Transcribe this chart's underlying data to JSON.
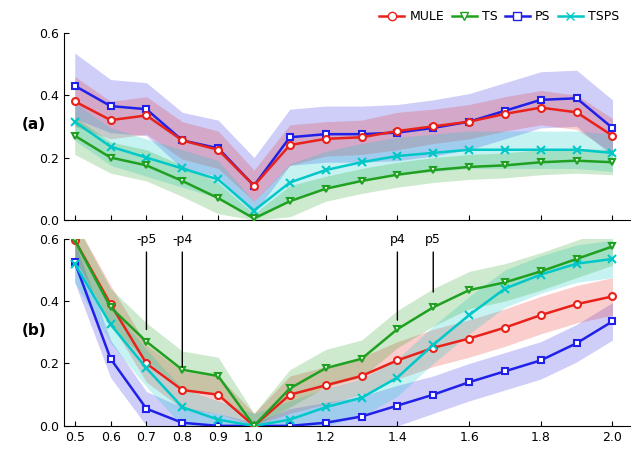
{
  "x": [
    0.5,
    0.6,
    0.7,
    0.8,
    0.9,
    1.0,
    1.1,
    1.2,
    1.3,
    1.4,
    1.5,
    1.6,
    1.7,
    1.8,
    1.9,
    2.0
  ],
  "a_MULE": [
    0.38,
    0.32,
    0.335,
    0.255,
    0.225,
    0.11,
    0.24,
    0.26,
    0.265,
    0.285,
    0.3,
    0.315,
    0.34,
    0.36,
    0.345,
    0.27
  ],
  "a_MULE_lo": [
    0.3,
    0.26,
    0.275,
    0.195,
    0.165,
    0.06,
    0.175,
    0.205,
    0.21,
    0.225,
    0.245,
    0.26,
    0.285,
    0.305,
    0.29,
    0.215
  ],
  "a_MULE_hi": [
    0.46,
    0.38,
    0.395,
    0.315,
    0.285,
    0.16,
    0.305,
    0.315,
    0.32,
    0.345,
    0.355,
    0.37,
    0.395,
    0.415,
    0.4,
    0.325
  ],
  "a_TS": [
    0.27,
    0.2,
    0.175,
    0.125,
    0.07,
    0.005,
    0.06,
    0.1,
    0.125,
    0.145,
    0.16,
    0.17,
    0.175,
    0.185,
    0.19,
    0.185
  ],
  "a_TS_lo": [
    0.21,
    0.15,
    0.125,
    0.075,
    0.02,
    0.0,
    0.01,
    0.06,
    0.085,
    0.105,
    0.12,
    0.13,
    0.135,
    0.145,
    0.15,
    0.145
  ],
  "a_TS_hi": [
    0.33,
    0.25,
    0.225,
    0.175,
    0.12,
    0.02,
    0.11,
    0.14,
    0.165,
    0.185,
    0.2,
    0.21,
    0.215,
    0.225,
    0.23,
    0.225
  ],
  "a_PS": [
    0.43,
    0.365,
    0.355,
    0.255,
    0.23,
    0.11,
    0.265,
    0.275,
    0.275,
    0.28,
    0.295,
    0.315,
    0.35,
    0.385,
    0.39,
    0.295
  ],
  "a_PS_lo": [
    0.325,
    0.28,
    0.27,
    0.165,
    0.14,
    0.02,
    0.175,
    0.185,
    0.185,
    0.19,
    0.205,
    0.225,
    0.26,
    0.295,
    0.3,
    0.205
  ],
  "a_PS_hi": [
    0.535,
    0.45,
    0.44,
    0.345,
    0.32,
    0.2,
    0.355,
    0.365,
    0.365,
    0.37,
    0.385,
    0.405,
    0.44,
    0.475,
    0.48,
    0.385
  ],
  "a_TSPS": [
    0.315,
    0.235,
    0.2,
    0.165,
    0.13,
    0.03,
    0.12,
    0.16,
    0.185,
    0.205,
    0.215,
    0.225,
    0.225,
    0.225,
    0.225,
    0.215
  ],
  "a_TSPS_lo": [
    0.255,
    0.175,
    0.14,
    0.105,
    0.07,
    0.0,
    0.06,
    0.1,
    0.125,
    0.145,
    0.155,
    0.165,
    0.165,
    0.165,
    0.165,
    0.155
  ],
  "a_TSPS_hi": [
    0.375,
    0.295,
    0.26,
    0.225,
    0.19,
    0.06,
    0.18,
    0.22,
    0.245,
    0.265,
    0.275,
    0.285,
    0.285,
    0.285,
    0.285,
    0.275
  ],
  "b_MULE": [
    0.595,
    0.39,
    0.2,
    0.115,
    0.1,
    0.0,
    0.1,
    0.13,
    0.16,
    0.21,
    0.25,
    0.28,
    0.315,
    0.355,
    0.39,
    0.415
  ],
  "b_MULE_lo": [
    0.535,
    0.33,
    0.14,
    0.055,
    0.04,
    0.0,
    0.04,
    0.07,
    0.1,
    0.15,
    0.19,
    0.22,
    0.255,
    0.295,
    0.33,
    0.355
  ],
  "b_MULE_hi": [
    0.655,
    0.45,
    0.26,
    0.175,
    0.16,
    0.04,
    0.16,
    0.19,
    0.22,
    0.27,
    0.31,
    0.34,
    0.375,
    0.415,
    0.45,
    0.475
  ],
  "b_TS": [
    0.595,
    0.38,
    0.27,
    0.18,
    0.16,
    0.0,
    0.12,
    0.185,
    0.215,
    0.31,
    0.38,
    0.435,
    0.46,
    0.495,
    0.535,
    0.575
  ],
  "b_TS_lo": [
    0.535,
    0.32,
    0.21,
    0.12,
    0.1,
    0.0,
    0.06,
    0.125,
    0.155,
    0.25,
    0.32,
    0.375,
    0.4,
    0.435,
    0.475,
    0.515
  ],
  "b_TS_hi": [
    0.655,
    0.44,
    0.33,
    0.24,
    0.22,
    0.04,
    0.18,
    0.245,
    0.275,
    0.37,
    0.44,
    0.495,
    0.52,
    0.555,
    0.595,
    0.635
  ],
  "b_PS": [
    0.525,
    0.215,
    0.055,
    0.01,
    0.0,
    0.0,
    0.0,
    0.01,
    0.03,
    0.065,
    0.1,
    0.14,
    0.175,
    0.21,
    0.265,
    0.335
  ],
  "b_PS_lo": [
    0.46,
    0.155,
    0.0,
    0.0,
    0.0,
    0.0,
    0.0,
    0.0,
    0.0,
    0.0,
    0.04,
    0.08,
    0.115,
    0.15,
    0.205,
    0.275
  ],
  "b_PS_hi": [
    0.59,
    0.275,
    0.11,
    0.06,
    0.04,
    0.01,
    0.055,
    0.075,
    0.095,
    0.13,
    0.16,
    0.2,
    0.235,
    0.27,
    0.325,
    0.395
  ],
  "b_TSPS": [
    0.52,
    0.325,
    0.185,
    0.06,
    0.02,
    0.0,
    0.02,
    0.06,
    0.09,
    0.155,
    0.26,
    0.355,
    0.44,
    0.485,
    0.52,
    0.535
  ],
  "b_TSPS_lo": [
    0.46,
    0.265,
    0.125,
    0.0,
    0.0,
    0.0,
    0.0,
    0.0,
    0.03,
    0.095,
    0.2,
    0.295,
    0.38,
    0.425,
    0.46,
    0.475
  ],
  "b_TSPS_hi": [
    0.58,
    0.385,
    0.245,
    0.12,
    0.08,
    0.04,
    0.08,
    0.12,
    0.15,
    0.215,
    0.32,
    0.415,
    0.5,
    0.545,
    0.58,
    0.595
  ],
  "colors": {
    "MULE": "#e8221a",
    "TS": "#20a020",
    "PS": "#2020e8",
    "TSPS": "#00c8c8"
  }
}
